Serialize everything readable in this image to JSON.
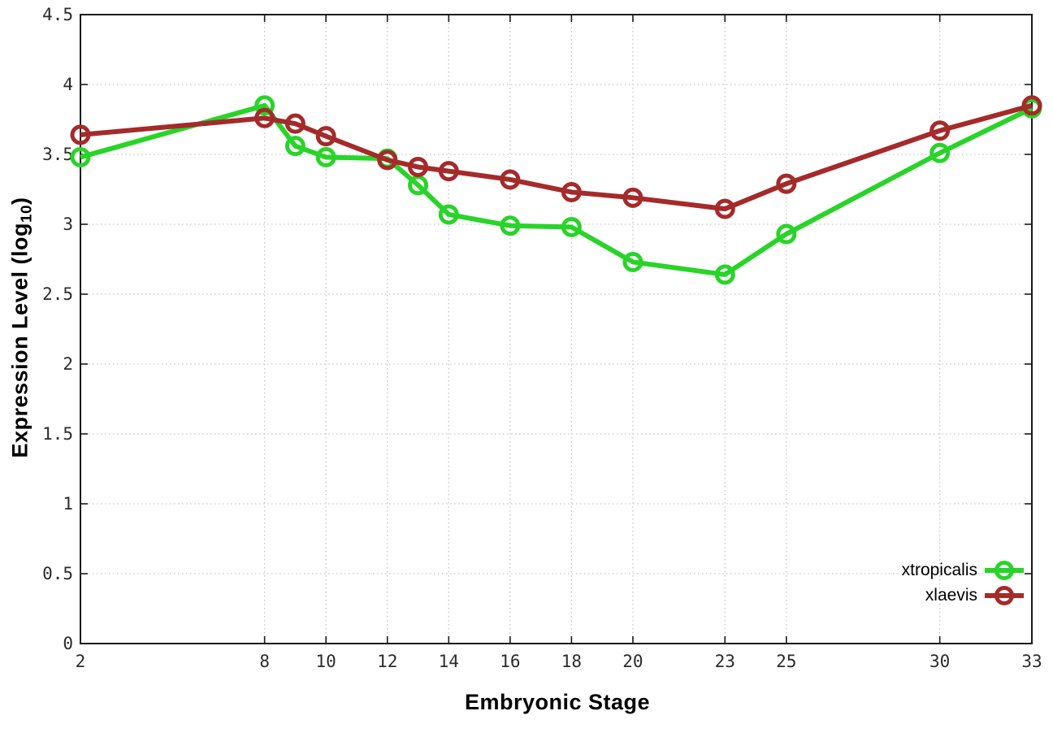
{
  "chart_data": {
    "type": "line",
    "title": "",
    "xlabel": "Embryonic Stage",
    "ylabel": "Expression Level (log10)",
    "ylabel_parts": {
      "pre": "Expression Level (log",
      "sub": "10",
      "post": ")"
    },
    "x": [
      2,
      8,
      9,
      10,
      12,
      13,
      14,
      16,
      18,
      20,
      23,
      25,
      30,
      33
    ],
    "series": [
      {
        "name": "xtropicalis",
        "color": "#28d428",
        "marker": "open-circle",
        "values": [
          3.48,
          3.85,
          3.56,
          3.48,
          3.47,
          3.28,
          3.07,
          2.99,
          2.98,
          2.73,
          2.64,
          2.93,
          3.51,
          3.83
        ]
      },
      {
        "name": "xlaevis",
        "color": "#a52a2a",
        "marker": "open-circle",
        "values": [
          3.64,
          3.76,
          3.72,
          3.63,
          3.46,
          3.41,
          3.38,
          3.32,
          3.23,
          3.19,
          3.11,
          3.29,
          3.67,
          3.85
        ]
      }
    ],
    "x_ticks": [
      "2",
      "8",
      "10",
      "12",
      "14",
      "16",
      "18",
      "20",
      "23",
      "25",
      "30",
      "33"
    ],
    "x_tick_values": [
      2,
      8,
      10,
      12,
      14,
      16,
      18,
      20,
      23,
      25,
      30,
      33
    ],
    "y_ticks": [
      "0",
      "0.5",
      "1",
      "1.5",
      "2",
      "2.5",
      "3",
      "3.5",
      "4",
      "4.5"
    ],
    "y_tick_values": [
      0,
      0.5,
      1,
      1.5,
      2,
      2.5,
      3,
      3.5,
      4,
      4.5
    ],
    "xlim": [
      2,
      33
    ],
    "ylim": [
      0,
      4.5
    ],
    "grid": true,
    "legend_position": "inside-bottom-right",
    "colors": {
      "grid": "#c6c6c6",
      "border": "#1a1a1a",
      "tick_label": "#2b2b2b"
    }
  }
}
